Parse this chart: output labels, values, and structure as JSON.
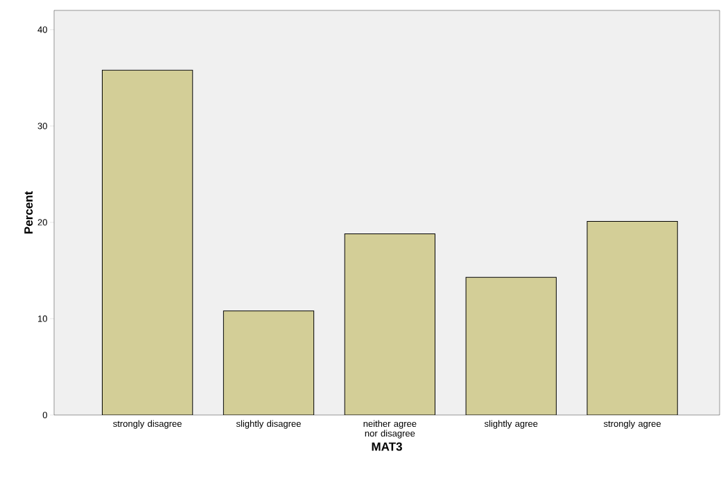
{
  "chart_data": {
    "type": "bar",
    "xlabel": "MAT3",
    "ylabel": "Percent",
    "categories": [
      "strongly disagree",
      "slightly disagree",
      "neither agree nor disagree",
      "slightly agree",
      "strongly agree"
    ],
    "values": [
      35.8,
      10.8,
      18.8,
      14.3,
      20.1
    ],
    "color": "#d3ce97",
    "ylim": [
      0,
      42
    ],
    "yticks": [
      0,
      10,
      20,
      30,
      40
    ],
    "grid": false
  }
}
